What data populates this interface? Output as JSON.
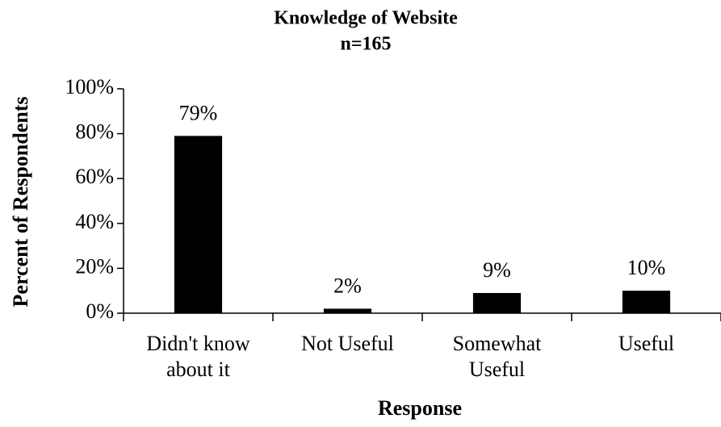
{
  "chart_data": {
    "type": "bar",
    "title": "Knowledge of Website",
    "subtitle": "n=165",
    "x_label": "Response",
    "y_label": "Percent of Respondents",
    "categories": [
      "Didn't know about it",
      "Not Useful",
      "Somewhat Useful",
      "Useful"
    ],
    "values": [
      79,
      2,
      9,
      10
    ],
    "value_labels": [
      "79%",
      "2%",
      "9%",
      "10%"
    ],
    "color": "#000000",
    "ylim": [
      0,
      100
    ],
    "yticks": [
      {
        "value": 0,
        "label": "0%"
      },
      {
        "value": 20,
        "label": "20%"
      },
      {
        "value": 40,
        "label": "40%"
      },
      {
        "value": 60,
        "label": "60%"
      },
      {
        "value": 80,
        "label": "80%"
      },
      {
        "value": 100,
        "label": "100%"
      }
    ],
    "grid": false
  }
}
